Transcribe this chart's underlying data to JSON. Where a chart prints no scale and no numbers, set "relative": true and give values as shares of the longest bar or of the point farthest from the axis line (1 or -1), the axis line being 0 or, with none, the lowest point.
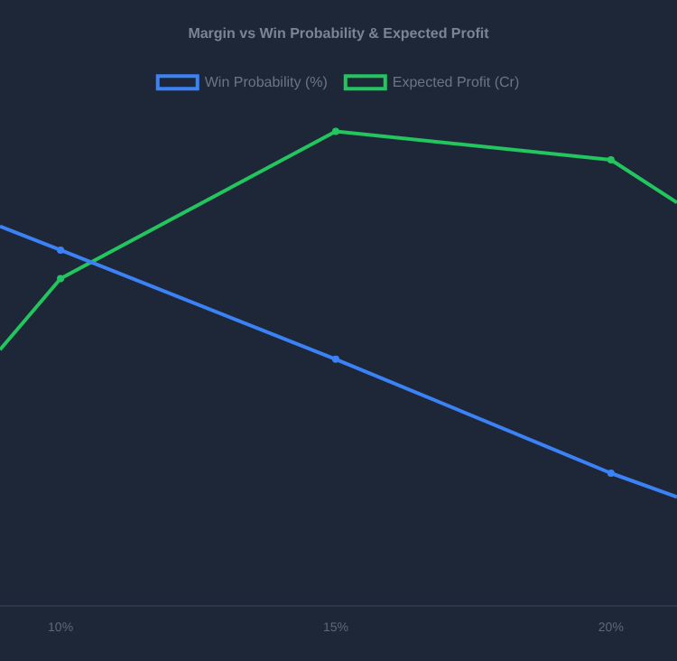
{
  "chart_data": {
    "type": "line",
    "title": "Margin vs Win Probability & Expected Profit",
    "relative": true,
    "x": [
      8.9,
      10,
      15,
      20,
      21.2
    ],
    "xlim": [
      8.9,
      21.2
    ],
    "xticks": [
      {
        "value": 10,
        "label": "10%"
      },
      {
        "value": 15,
        "label": "15%"
      },
      {
        "value": 20,
        "label": "20%"
      }
    ],
    "series": [
      {
        "name": "Win Probability (%)",
        "color": "#3b82f6",
        "values": [
          0.8,
          0.75,
          0.52,
          0.28,
          0.23
        ]
      },
      {
        "name": "Expected Profit (Cr)",
        "color": "#22c55e",
        "values": [
          0.54,
          0.69,
          1,
          0.94,
          0.85
        ]
      }
    ],
    "legend": "top",
    "grid": false,
    "marker": "circle",
    "line_style": "solid"
  }
}
